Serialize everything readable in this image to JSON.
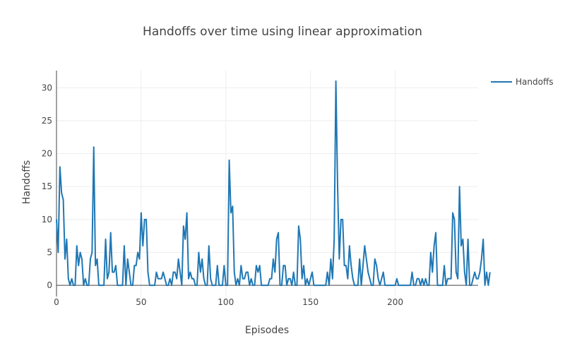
{
  "chart_data": {
    "type": "line",
    "title": "Handoffs over time using linear approximation",
    "xlabel": "Episodes",
    "ylabel": "Handoffs",
    "xlim": [
      0,
      249
    ],
    "ylim": [
      -1.7,
      32.6
    ],
    "x_ticks": [
      0,
      50,
      100,
      150,
      200
    ],
    "y_ticks": [
      0,
      5,
      10,
      15,
      20,
      25,
      30
    ],
    "grid": true,
    "legend_position": "top-right",
    "series": [
      {
        "name": "Handoffs",
        "color": "#1f77b4",
        "values": [
          10,
          5,
          18,
          14,
          13,
          4,
          7,
          1,
          0,
          1,
          0,
          0,
          6,
          3,
          5,
          4,
          0,
          1,
          0,
          0,
          4,
          5,
          21,
          3,
          4,
          0,
          0,
          0,
          0,
          7,
          1,
          2,
          8,
          2,
          2,
          3,
          0,
          0,
          0,
          0,
          6,
          0,
          4,
          2,
          0,
          0,
          3,
          3,
          5,
          4,
          11,
          6,
          10,
          10,
          2,
          0,
          0,
          0,
          0,
          2,
          1,
          1,
          1,
          2,
          1,
          0,
          0,
          1,
          0,
          2,
          2,
          1,
          4,
          2,
          0,
          9,
          7,
          11,
          1,
          2,
          1,
          1,
          0,
          0,
          5,
          2,
          4,
          1,
          0,
          0,
          6,
          1,
          0,
          0,
          0,
          3,
          0,
          0,
          0,
          3,
          0,
          0,
          19,
          11,
          12,
          2,
          0,
          1,
          0,
          3,
          1,
          1,
          2,
          2,
          0,
          1,
          0,
          0,
          3,
          2,
          3,
          0,
          0,
          0,
          0,
          0,
          1,
          1,
          4,
          2,
          7,
          8,
          0,
          0,
          3,
          3,
          0,
          1,
          1,
          0,
          2,
          0,
          0,
          9,
          7,
          1,
          3,
          0,
          1,
          0,
          1,
          2,
          0,
          0,
          0,
          0,
          0,
          0,
          0,
          0,
          2,
          0,
          4,
          1,
          7,
          31,
          15,
          4,
          10,
          10,
          3,
          3,
          1,
          6,
          3,
          1,
          0,
          0,
          0,
          4,
          0,
          3,
          6,
          4,
          2,
          1,
          0,
          0,
          4,
          3,
          1,
          0,
          1,
          2,
          0,
          0,
          0,
          0,
          0,
          0,
          0,
          1,
          0,
          0,
          0,
          0,
          0,
          0,
          0,
          0,
          2,
          0,
          0,
          1,
          1,
          0,
          1,
          0,
          1,
          0,
          0,
          5,
          2,
          6,
          8,
          0,
          0,
          0,
          0,
          3,
          0,
          1,
          1,
          1,
          11,
          10,
          2,
          1,
          15,
          6,
          7,
          2,
          0,
          7,
          0,
          0,
          1,
          2,
          1,
          1,
          2,
          4,
          7,
          0,
          2,
          0,
          2
        ]
      }
    ]
  }
}
